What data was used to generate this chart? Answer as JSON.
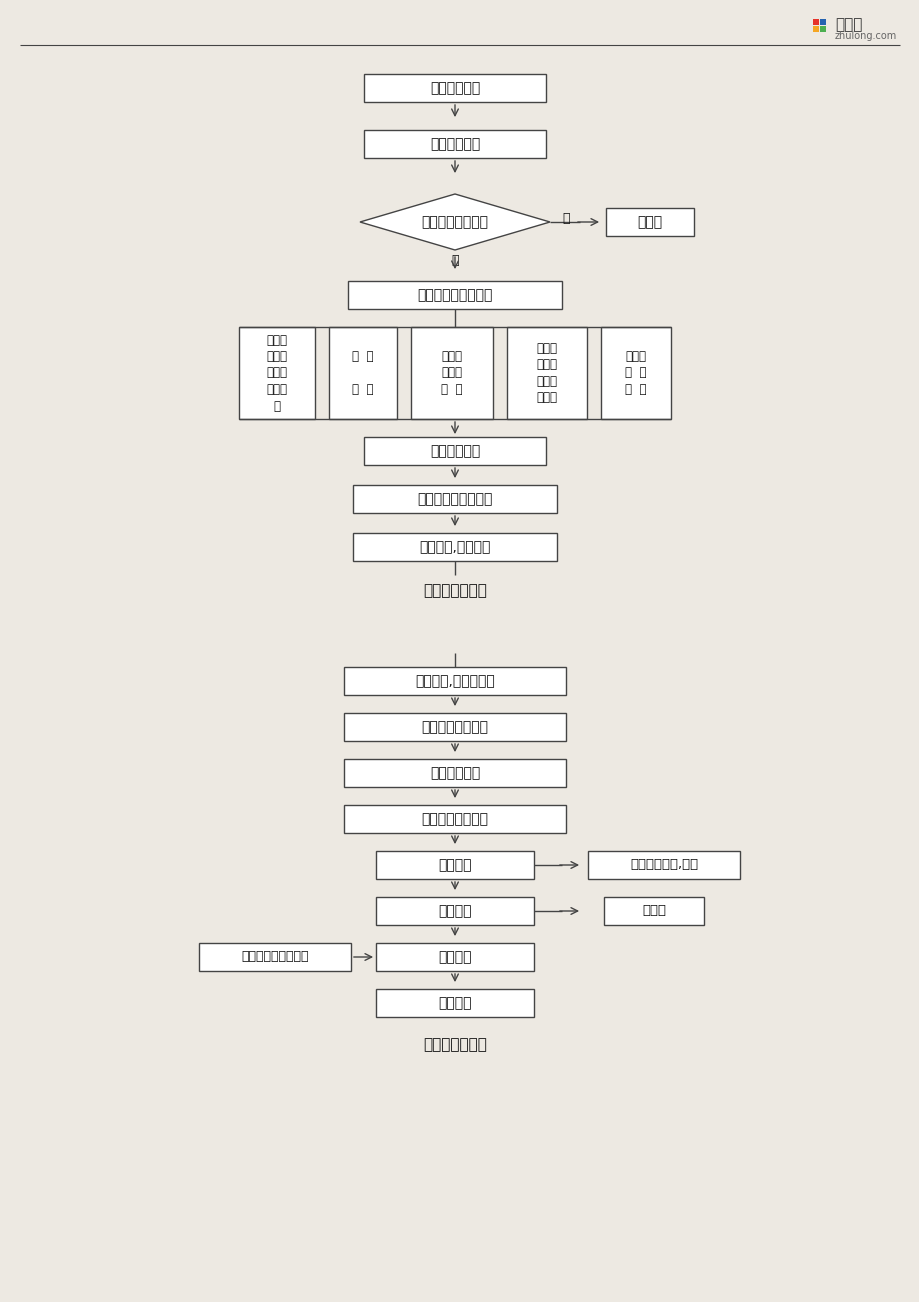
{
  "bg_color": "#f2f0ed",
  "line_color": "#444444",
  "box_fill": "#ffffff",
  "text_color": "#111111",
  "title1": "投标程序（一）",
  "title2": "投标程序（二）",
  "nodes1": {
    "box1": "获取投标信息",
    "box2": "前期投标决策",
    "diamond": "资格预审是否通过",
    "diamond_yes": "是",
    "diamond_no": "否",
    "no_box": "未通过",
    "box3": "购买和阅读招标文件",
    "par1": "组织投\n标班子\n和选择\n咨询单\n位",
    "par2": "现  场\n\n勘  察",
    "par3": "计算和\n复核工\n程  量",
    "par4": "业主召\n开标前\n会议并\n答问题",
    "par5": "询价及\n市  场\n调  查",
    "box4": "制订施工规划",
    "box5": "投标技巧分析和选用",
    "box6": "选择定额,汇总标价"
  },
  "nodes2": {
    "boxA": "计算单价,汇总投标价",
    "boxB": "投标价评估及调整",
    "boxC": "编制投标文件",
    "boxD": "封存投标书和保函",
    "boxE": "开　　标",
    "side_e": "投标书不合格,剔除",
    "boxF": "评　　标",
    "side_f": "未授标",
    "boxG": "中　　标",
    "side_left": "办理和送交履约保函",
    "boxH": "签订合同"
  }
}
